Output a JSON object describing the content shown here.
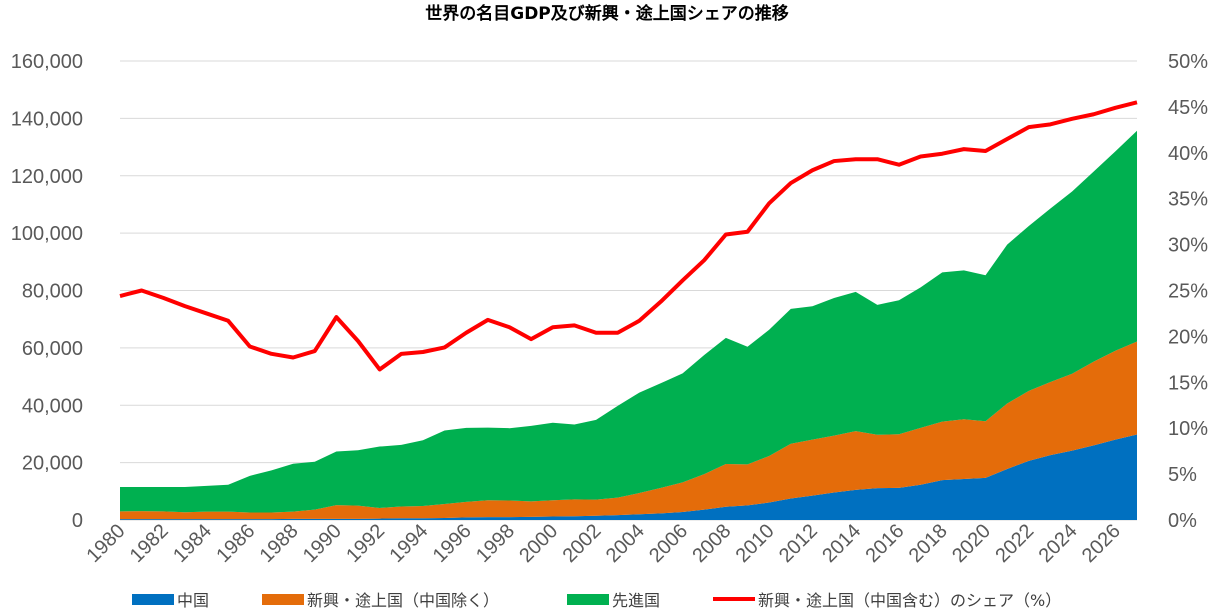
{
  "chart_data": {
    "type": "area",
    "title": "世界の名目GDP及び新興・途上国シェアの推移",
    "x": [
      1980,
      1981,
      1982,
      1983,
      1984,
      1985,
      1986,
      1987,
      1988,
      1989,
      1990,
      1991,
      1992,
      1993,
      1994,
      1995,
      1996,
      1997,
      1998,
      1999,
      2000,
      2001,
      2002,
      2003,
      2004,
      2005,
      2006,
      2007,
      2008,
      2009,
      2010,
      2011,
      2012,
      2013,
      2014,
      2015,
      2016,
      2017,
      2018,
      2019,
      2020,
      2021,
      2022,
      2023,
      2024,
      2025,
      2026,
      2027
    ],
    "x_tick_labels": [
      "1980",
      "1982",
      "1984",
      "1986",
      "1988",
      "1990",
      "1992",
      "1994",
      "1996",
      "1998",
      "2000",
      "2002",
      "2004",
      "2006",
      "2008",
      "2010",
      "2012",
      "2014",
      "2016",
      "2018",
      "2020",
      "2022",
      "2024",
      "2026"
    ],
    "y_left_ticks": [
      "0",
      "20,000",
      "40,000",
      "60,000",
      "80,000",
      "100,000",
      "120,000",
      "140,000",
      "160,000"
    ],
    "y_left_range": [
      0,
      160000
    ],
    "y_right_ticks": [
      "0%",
      "5%",
      "10%",
      "15%",
      "20%",
      "25%",
      "30%",
      "35%",
      "40%",
      "45%",
      "50%"
    ],
    "y_right_range": [
      0,
      50
    ],
    "grid": true,
    "legend_position": "bottom",
    "stacked": true,
    "series": [
      {
        "name": "中国",
        "kind": "area",
        "axis": "left",
        "color": "#0070C0",
        "values": [
          300,
          300,
          300,
          300,
          300,
          300,
          300,
          300,
          400,
          400,
          400,
          400,
          500,
          600,
          600,
          700,
          900,
          1000,
          1000,
          1100,
          1200,
          1300,
          1500,
          1700,
          2000,
          2300,
          2800,
          3600,
          4600,
          5100,
          6100,
          7500,
          8500,
          9600,
          10500,
          11100,
          11200,
          12300,
          13900,
          14300,
          14700,
          17800,
          20600,
          22600,
          24200,
          26000,
          28000,
          29800
        ]
      },
      {
        "name": "新興・途上国（中国除く）",
        "kind": "area",
        "axis": "left",
        "color": "#E46C0A",
        "values": [
          2700,
          2800,
          2700,
          2400,
          2600,
          2600,
          2300,
          2300,
          2500,
          3200,
          4800,
          4600,
          3700,
          4100,
          4300,
          4900,
          5400,
          5900,
          5800,
          5400,
          5700,
          5900,
          5600,
          6100,
          7400,
          8900,
          10300,
          12400,
          14900,
          14300,
          16200,
          19100,
          19500,
          19800,
          20500,
          18600,
          18700,
          19800,
          20400,
          20800,
          19700,
          22800,
          24400,
          25500,
          26800,
          29200,
          31000,
          32400
        ]
      },
      {
        "name": "先進国",
        "kind": "area",
        "axis": "left",
        "color": "#00B050",
        "values": [
          8500,
          8400,
          8500,
          8800,
          9000,
          9400,
          12800,
          14700,
          16700,
          16700,
          18700,
          19300,
          21400,
          21500,
          22900,
          25600,
          25800,
          25300,
          25200,
          26300,
          27000,
          26100,
          27800,
          32000,
          35000,
          36500,
          38000,
          41500,
          44000,
          41000,
          44000,
          47000,
          46500,
          48000,
          48500,
          45300,
          46700,
          49000,
          52000,
          51900,
          50900,
          55400,
          57500,
          60500,
          63500,
          66300,
          69500,
          73500
        ]
      },
      {
        "name": "新興・途上国（中国含む）のシェア（%）",
        "kind": "line",
        "axis": "right",
        "color": "#FF0000",
        "values": [
          24.4,
          25.0,
          24.2,
          23.3,
          22.5,
          21.7,
          18.9,
          18.1,
          17.7,
          18.4,
          22.1,
          19.5,
          16.4,
          18.1,
          18.3,
          18.8,
          20.4,
          21.8,
          21.0,
          19.7,
          21.0,
          21.2,
          20.4,
          20.4,
          21.7,
          23.8,
          26.1,
          28.3,
          31.1,
          31.4,
          34.5,
          36.7,
          38.1,
          39.1,
          39.3,
          39.3,
          38.7,
          39.6,
          39.9,
          40.4,
          40.2,
          41.5,
          42.8,
          43.1,
          43.7,
          44.2,
          44.9,
          45.5
        ]
      }
    ]
  }
}
